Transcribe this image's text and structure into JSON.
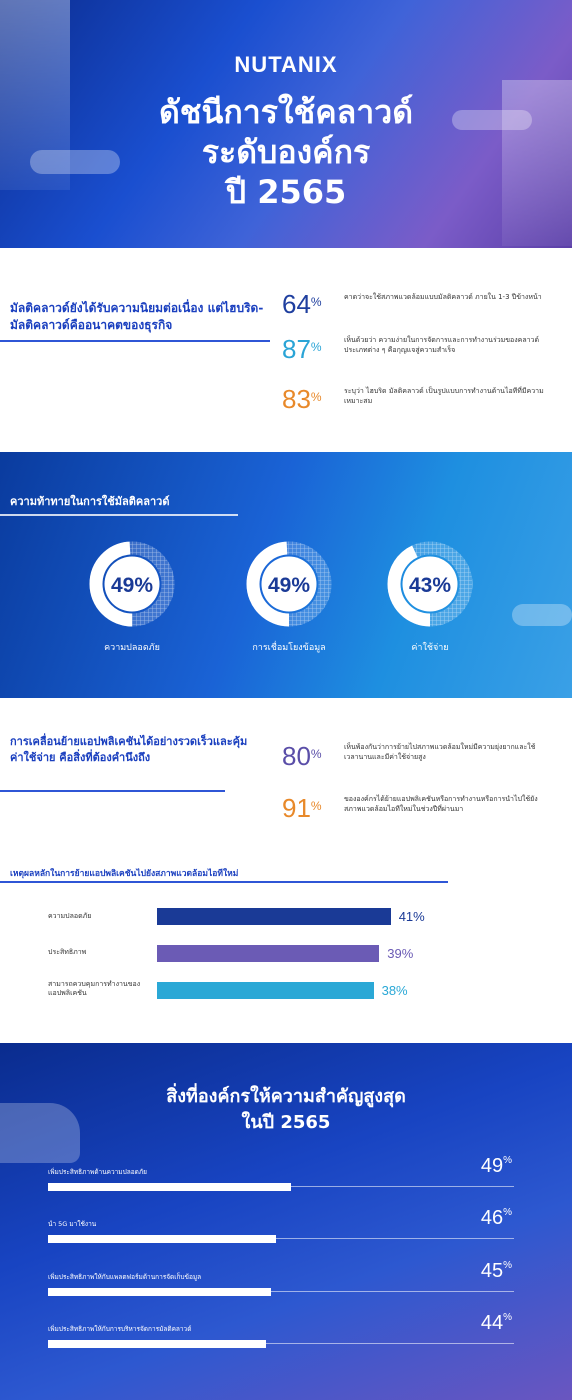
{
  "header": {
    "logo_text": "NUTANIX",
    "title_lines": [
      "ดัชนีการใช้คลาวด์",
      "ระดับองค์กร",
      "ปี 2565"
    ]
  },
  "section1": {
    "heading": "มัลติคลาวด์ยังได้รับความนิยมต่อเนื่อง แต่ไฮบริด-มัลติคลาวด์คืออนาคตของธุรกิจ",
    "stats": [
      {
        "value": "64",
        "unit": "%",
        "color": "#1f3f9f",
        "desc": "คาดว่าจะใช้สภาพแวดล้อมแบบมัลติคลาวด์ ภายใน 1-3 ปีข้างหน้า"
      },
      {
        "value": "87",
        "unit": "%",
        "color": "#2aa4d6",
        "desc": "เห็นด้วยว่า ความง่ายในการจัดการและการทำงานร่วมของคลาวด์ประเภทต่าง ๆ คือกุญแจสู่ความสำเร็จ"
      },
      {
        "value": "83",
        "unit": "%",
        "color": "#e8892a",
        "desc": "ระบุว่า ไฮบริด มัลติคลาวด์ เป็นรูปแบบการทำงานด้านไอทีที่มีความเหมาะสม"
      }
    ]
  },
  "section2": {
    "heading": "ความท้าทายในการใช้มัลติคลาวด์",
    "donuts": [
      {
        "value": 49,
        "text": "49%",
        "label": "ความปลอดภัย"
      },
      {
        "value": 49,
        "text": "49%",
        "label": "การเชื่อมโยงข้อมูล"
      },
      {
        "value": 43,
        "text": "43%",
        "label": "ค่าใช้จ่าย"
      }
    ]
  },
  "section3": {
    "heading": "การเคลื่อนย้ายแอปพลิเคชันได้อย่างรวดเร็วและคุ้มค่าใช้จ่าย คือสิ่งที่ต้องคำนึงถึง",
    "stats": [
      {
        "value": "80",
        "unit": "%",
        "color": "#5a4ea8",
        "desc": "เห็นพ้องกันว่าการย้ายไปสภาพแวดล้อมใหม่มีความยุ่งยากและใช้เวลานานและมีค่าใช้จ่ายสูง"
      },
      {
        "value": "91",
        "unit": "%",
        "color": "#e8892a",
        "desc": "ขององค์กรได้ย้ายแอปพลิเคชันหรือการทำงานหรือการนำไปใช้ยังสภาพแวดล้อมไอทีใหม่ในช่วงปีที่ผ่านมา"
      }
    ]
  },
  "chart_data": {
    "type": "bar",
    "title": "เหตุผลหลักในการย้ายแอปพลิเคชันไปยังสภาพแวดล้อมไอทีใหม่",
    "categories": [
      "ความปลอดภัย",
      "ประสิทธิภาพ",
      "สามารถควบคุมการทำงานของแอปพลิเคชัน"
    ],
    "values": [
      41,
      39,
      38
    ],
    "value_labels": [
      "41%",
      "39%",
      "38%"
    ],
    "colors": [
      "#1a3a96",
      "#6b5bb5",
      "#2aa8d6"
    ],
    "xlim": [
      0,
      100
    ]
  },
  "section5": {
    "title_lines": [
      "สิ่งที่องค์กรให้ความสำคัญสูงสุด",
      "ในปี 2565"
    ],
    "items": [
      {
        "label": "เพิ่มประสิทธิภาพด้านความปลอดภัย",
        "value": 49,
        "text": "49",
        "unit": "%"
      },
      {
        "label": "นำ 5G มาใช้งาน",
        "value": 46,
        "text": "46",
        "unit": "%"
      },
      {
        "label": "เพิ่มประสิทธิภาพให้กับแพลตฟอร์มด้านการจัดเก็บข้อมูล",
        "value": 45,
        "text": "45",
        "unit": "%"
      },
      {
        "label": "เพิ่มประสิทธิภาพให้กับการบริหารจัดการมัลติคลาวด์",
        "value": 44,
        "text": "44",
        "unit": "%"
      }
    ]
  }
}
